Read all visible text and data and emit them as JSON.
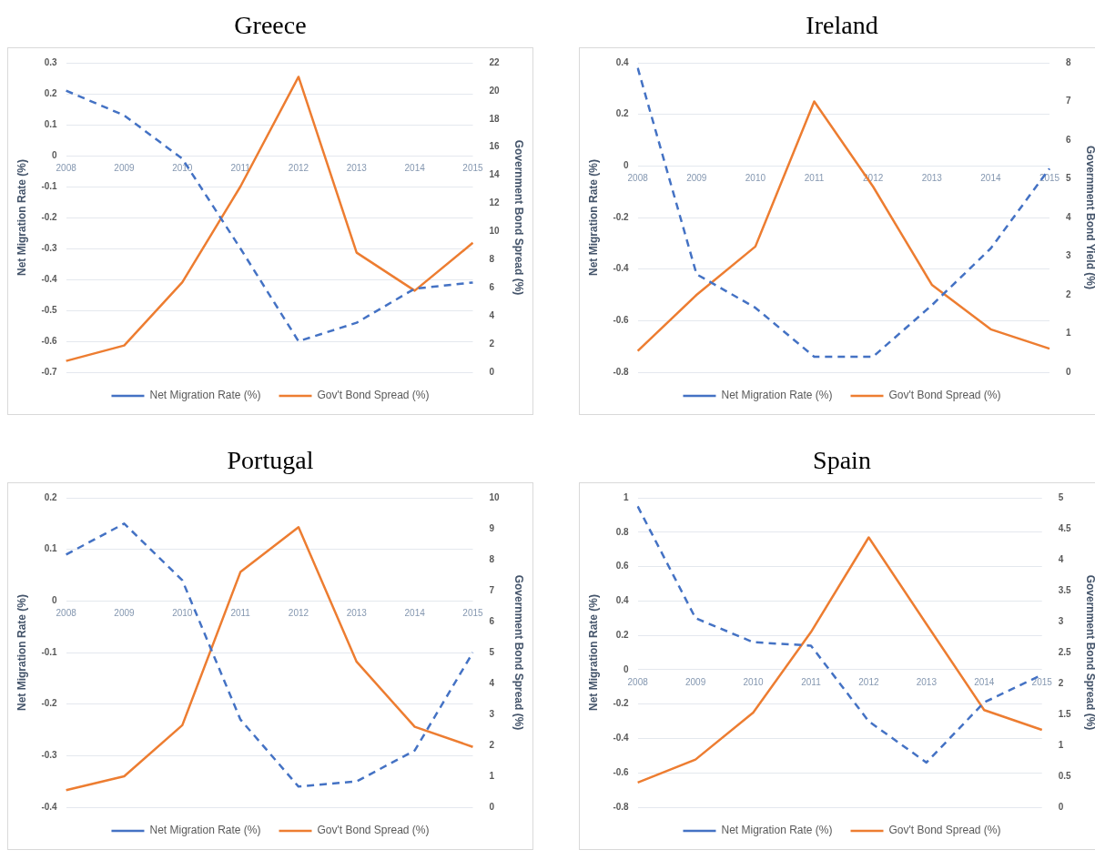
{
  "chart_data": [
    {
      "type": "line",
      "title": "Greece",
      "ylabel": "Net Migration Rate (%)",
      "y2label": "Government Bond Spread (%)",
      "categories": [
        "2008",
        "2009",
        "2010",
        "2011",
        "2012",
        "2013",
        "2014",
        "2015"
      ],
      "series": [
        {
          "name": "Net Migration Rate (%)",
          "color": "#4472c4",
          "line_style": "dashed",
          "values": [
            0.21,
            0.13,
            -0.01,
            -0.3,
            -0.6,
            -0.54,
            -0.43,
            -0.41
          ]
        },
        {
          "name": "Gov't Bond Spread (%)",
          "color": "#ed7d31",
          "line_style": "solid",
          "axis": "y2",
          "values": [
            0.8,
            1.9,
            6.4,
            13.2,
            21.0,
            8.5,
            5.8,
            9.2
          ]
        }
      ],
      "ylim": [
        -0.7,
        0.3
      ],
      "yticks": [
        -0.7,
        -0.6,
        -0.5,
        -0.4,
        -0.3,
        -0.2,
        -0.1,
        0,
        0.1,
        0.2,
        0.3
      ],
      "y2lim": [
        0,
        22
      ],
      "y2ticks": [
        0,
        2,
        4,
        6,
        8,
        10,
        12,
        14,
        16,
        18,
        20,
        22
      ],
      "grid": "y",
      "legend": "bottom"
    },
    {
      "type": "line",
      "title": "Ireland",
      "ylabel": "Net Migration Rate (%)",
      "y2label": "Government Bond Yield (%)",
      "categories": [
        "2008",
        "2009",
        "2010",
        "2011",
        "2012",
        "2013",
        "2014",
        "2015"
      ],
      "series": [
        {
          "name": "Net Migration Rate (%)",
          "color": "#4472c4",
          "line_style": "dashed",
          "values": [
            0.38,
            -0.42,
            -0.55,
            -0.74,
            -0.74,
            -0.54,
            -0.32,
            -0.01
          ]
        },
        {
          "name": "Gov't Bond Spread (%)",
          "color": "#ed7d31",
          "line_style": "solid",
          "axis": "y2",
          "values": [
            0.55,
            2.0,
            3.25,
            7.0,
            4.8,
            2.26,
            1.11,
            0.61
          ]
        }
      ],
      "ylim": [
        -0.8,
        0.4
      ],
      "yticks": [
        -0.8,
        -0.6,
        -0.4,
        -0.2,
        0,
        0.2,
        0.4
      ],
      "y2lim": [
        0,
        8
      ],
      "y2ticks": [
        0,
        1,
        2,
        3,
        4,
        5,
        6,
        7,
        8
      ],
      "grid": "y",
      "legend": "bottom"
    },
    {
      "type": "line",
      "title": "Portugal",
      "ylabel": "Net Migration Rate (%)",
      "y2label": "Government Bond Spread (%)",
      "categories": [
        "2008",
        "2009",
        "2010",
        "2011",
        "2012",
        "2013",
        "2014",
        "2015"
      ],
      "series": [
        {
          "name": "Net Migration Rate (%)",
          "color": "#4472c4",
          "line_style": "dashed",
          "values": [
            0.09,
            0.15,
            0.04,
            -0.23,
            -0.36,
            -0.35,
            -0.29,
            -0.1
          ]
        },
        {
          "name": "Gov't Bond Spread (%)",
          "color": "#ed7d31",
          "line_style": "solid",
          "axis": "y2",
          "values": [
            0.55,
            1.0,
            2.65,
            7.6,
            9.05,
            4.7,
            2.6,
            1.95
          ]
        }
      ],
      "ylim": [
        -0.4,
        0.2
      ],
      "yticks": [
        -0.4,
        -0.3,
        -0.2,
        -0.1,
        0,
        0.1,
        0.2
      ],
      "y2lim": [
        0,
        10
      ],
      "y2ticks": [
        0,
        1,
        2,
        3,
        4,
        5,
        6,
        7,
        8,
        9,
        10
      ],
      "grid": "y",
      "legend": "bottom"
    },
    {
      "type": "line",
      "title": "Spain",
      "ylabel": "Net Migration Rate (%)",
      "y2label": "Government Bond Spread (%)",
      "categories": [
        "2008",
        "2009",
        "2010",
        "2011",
        "2012",
        "2013",
        "2014",
        "2015"
      ],
      "series": [
        {
          "name": "Net Migration Rate (%)",
          "color": "#4472c4",
          "line_style": "dashed",
          "values": [
            0.95,
            0.3,
            0.16,
            0.14,
            -0.3,
            -0.54,
            -0.19,
            -0.03
          ]
        },
        {
          "name": "Gov't Bond Spread (%)",
          "color": "#ed7d31",
          "line_style": "solid",
          "axis": "y2",
          "values": [
            0.4,
            0.77,
            1.53,
            2.83,
            4.36,
            2.96,
            1.57,
            1.25
          ]
        }
      ],
      "ylim": [
        -0.8,
        1
      ],
      "yticks": [
        -0.8,
        -0.6,
        -0.4,
        -0.2,
        0,
        0.2,
        0.4,
        0.6,
        0.8,
        1
      ],
      "y2lim": [
        0,
        5
      ],
      "y2ticks": [
        0,
        0.5,
        1,
        1.5,
        2,
        2.5,
        3,
        3.5,
        4,
        4.5,
        5
      ],
      "grid": "y",
      "legend": "bottom"
    }
  ]
}
